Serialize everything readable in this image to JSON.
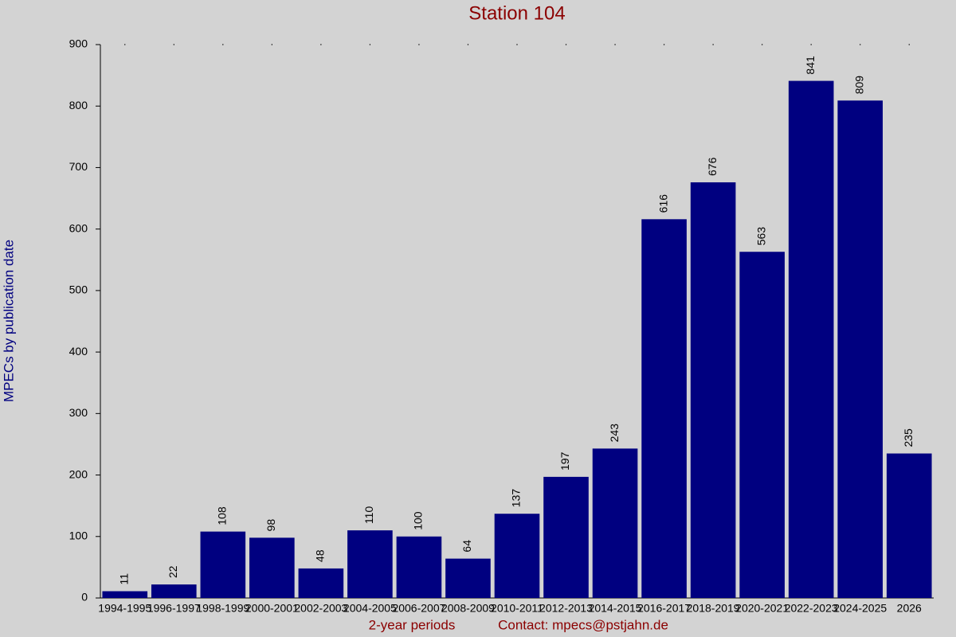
{
  "chart_data": {
    "type": "bar",
    "title": "Station 104",
    "x_label": "2-year periods",
    "note": "Contact: mpecs@pstjahn.de",
    "y_label": "MPECs by publication date",
    "categories": [
      "1994-1995",
      "1996-1997",
      "1998-1999",
      "2000-2001",
      "2002-2003",
      "2004-2005",
      "2006-2007",
      "2008-2009",
      "2010-2011",
      "2012-2013",
      "2014-2015",
      "2016-2017",
      "2018-2019",
      "2020-2021",
      "2022-2023",
      "2024-2025",
      "2026"
    ],
    "values": [
      11,
      22,
      108,
      98,
      48,
      110,
      100,
      64,
      137,
      197,
      243,
      616,
      676,
      563,
      841,
      809,
      235
    ],
    "color": "#000080",
    "ylim": [
      0,
      900
    ],
    "yticks": [
      0,
      100,
      200,
      300,
      400,
      500,
      600,
      700,
      800,
      900
    ]
  }
}
